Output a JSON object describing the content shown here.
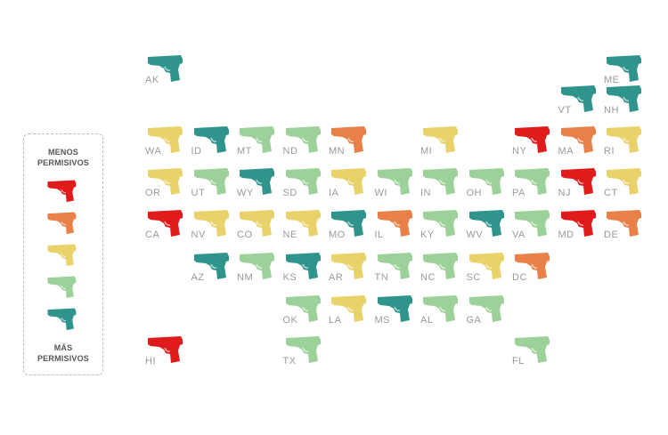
{
  "legend": {
    "top_label_line1": "MENOS",
    "top_label_line2": "PERMISIVOS",
    "bottom_label_line1": "MÁS",
    "bottom_label_line2": "PERMISIVOS"
  },
  "scale": [
    {
      "level": 1,
      "color": "#e01b1b"
    },
    {
      "level": 2,
      "color": "#e88048"
    },
    {
      "level": 3,
      "color": "#ead26a"
    },
    {
      "level": 4,
      "color": "#9dd19a"
    },
    {
      "level": 5,
      "color": "#2f948c"
    }
  ],
  "icon": "pistol-icon",
  "states": [
    {
      "abbr": "AK",
      "col": 0,
      "row": 0,
      "level": 5
    },
    {
      "abbr": "ME",
      "col": 10,
      "row": 0,
      "level": 5
    },
    {
      "abbr": "VT",
      "col": 9,
      "row": 1,
      "level": 5
    },
    {
      "abbr": "NH",
      "col": 10,
      "row": 1,
      "level": 5
    },
    {
      "abbr": "WA",
      "col": 0,
      "row": 2,
      "level": 3
    },
    {
      "abbr": "ID",
      "col": 1,
      "row": 2,
      "level": 5
    },
    {
      "abbr": "MT",
      "col": 2,
      "row": 2,
      "level": 4
    },
    {
      "abbr": "ND",
      "col": 3,
      "row": 2,
      "level": 4
    },
    {
      "abbr": "MN",
      "col": 4,
      "row": 2,
      "level": 2
    },
    {
      "abbr": "MI",
      "col": 6,
      "row": 2,
      "level": 3
    },
    {
      "abbr": "NY",
      "col": 8,
      "row": 2,
      "level": 1
    },
    {
      "abbr": "MA",
      "col": 9,
      "row": 2,
      "level": 2
    },
    {
      "abbr": "RI",
      "col": 10,
      "row": 2,
      "level": 3
    },
    {
      "abbr": "OR",
      "col": 0,
      "row": 3,
      "level": 3
    },
    {
      "abbr": "UT",
      "col": 1,
      "row": 3,
      "level": 4
    },
    {
      "abbr": "WY",
      "col": 2,
      "row": 3,
      "level": 5
    },
    {
      "abbr": "SD",
      "col": 3,
      "row": 3,
      "level": 4
    },
    {
      "abbr": "IA",
      "col": 4,
      "row": 3,
      "level": 3
    },
    {
      "abbr": "WI",
      "col": 5,
      "row": 3,
      "level": 4
    },
    {
      "abbr": "IN",
      "col": 6,
      "row": 3,
      "level": 4
    },
    {
      "abbr": "OH",
      "col": 7,
      "row": 3,
      "level": 4
    },
    {
      "abbr": "PA",
      "col": 8,
      "row": 3,
      "level": 4
    },
    {
      "abbr": "NJ",
      "col": 9,
      "row": 3,
      "level": 1
    },
    {
      "abbr": "CT",
      "col": 10,
      "row": 3,
      "level": 3
    },
    {
      "abbr": "CA",
      "col": 0,
      "row": 4,
      "level": 1
    },
    {
      "abbr": "NV",
      "col": 1,
      "row": 4,
      "level": 3
    },
    {
      "abbr": "CO",
      "col": 2,
      "row": 4,
      "level": 3
    },
    {
      "abbr": "NE",
      "col": 3,
      "row": 4,
      "level": 3
    },
    {
      "abbr": "MO",
      "col": 4,
      "row": 4,
      "level": 5
    },
    {
      "abbr": "IL",
      "col": 5,
      "row": 4,
      "level": 2
    },
    {
      "abbr": "KY",
      "col": 6,
      "row": 4,
      "level": 4
    },
    {
      "abbr": "WV",
      "col": 7,
      "row": 4,
      "level": 5
    },
    {
      "abbr": "VA",
      "col": 8,
      "row": 4,
      "level": 4
    },
    {
      "abbr": "MD",
      "col": 9,
      "row": 4,
      "level": 1
    },
    {
      "abbr": "DE",
      "col": 10,
      "row": 4,
      "level": 2
    },
    {
      "abbr": "AZ",
      "col": 1,
      "row": 5,
      "level": 5
    },
    {
      "abbr": "NM",
      "col": 2,
      "row": 5,
      "level": 4
    },
    {
      "abbr": "KS",
      "col": 3,
      "row": 5,
      "level": 5
    },
    {
      "abbr": "AR",
      "col": 4,
      "row": 5,
      "level": 3
    },
    {
      "abbr": "TN",
      "col": 5,
      "row": 5,
      "level": 4
    },
    {
      "abbr": "NC",
      "col": 6,
      "row": 5,
      "level": 4
    },
    {
      "abbr": "SC",
      "col": 7,
      "row": 5,
      "level": 3
    },
    {
      "abbr": "DC",
      "col": 8,
      "row": 5,
      "level": 2
    },
    {
      "abbr": "LA",
      "col": 4,
      "row": 6,
      "level": 3
    },
    {
      "abbr": "OK",
      "col": 3,
      "row": 6,
      "level": 4
    },
    {
      "abbr": "MS",
      "col": 5,
      "row": 6,
      "level": 5
    },
    {
      "abbr": "AL",
      "col": 6,
      "row": 6,
      "level": 4
    },
    {
      "abbr": "GA",
      "col": 7,
      "row": 6,
      "level": 4
    },
    {
      "abbr": "HI",
      "col": 0,
      "row": 7,
      "level": 1
    },
    {
      "abbr": "TX",
      "col": 3,
      "row": 7,
      "level": 4
    },
    {
      "abbr": "FL",
      "col": 8,
      "row": 7,
      "level": 4
    }
  ]
}
